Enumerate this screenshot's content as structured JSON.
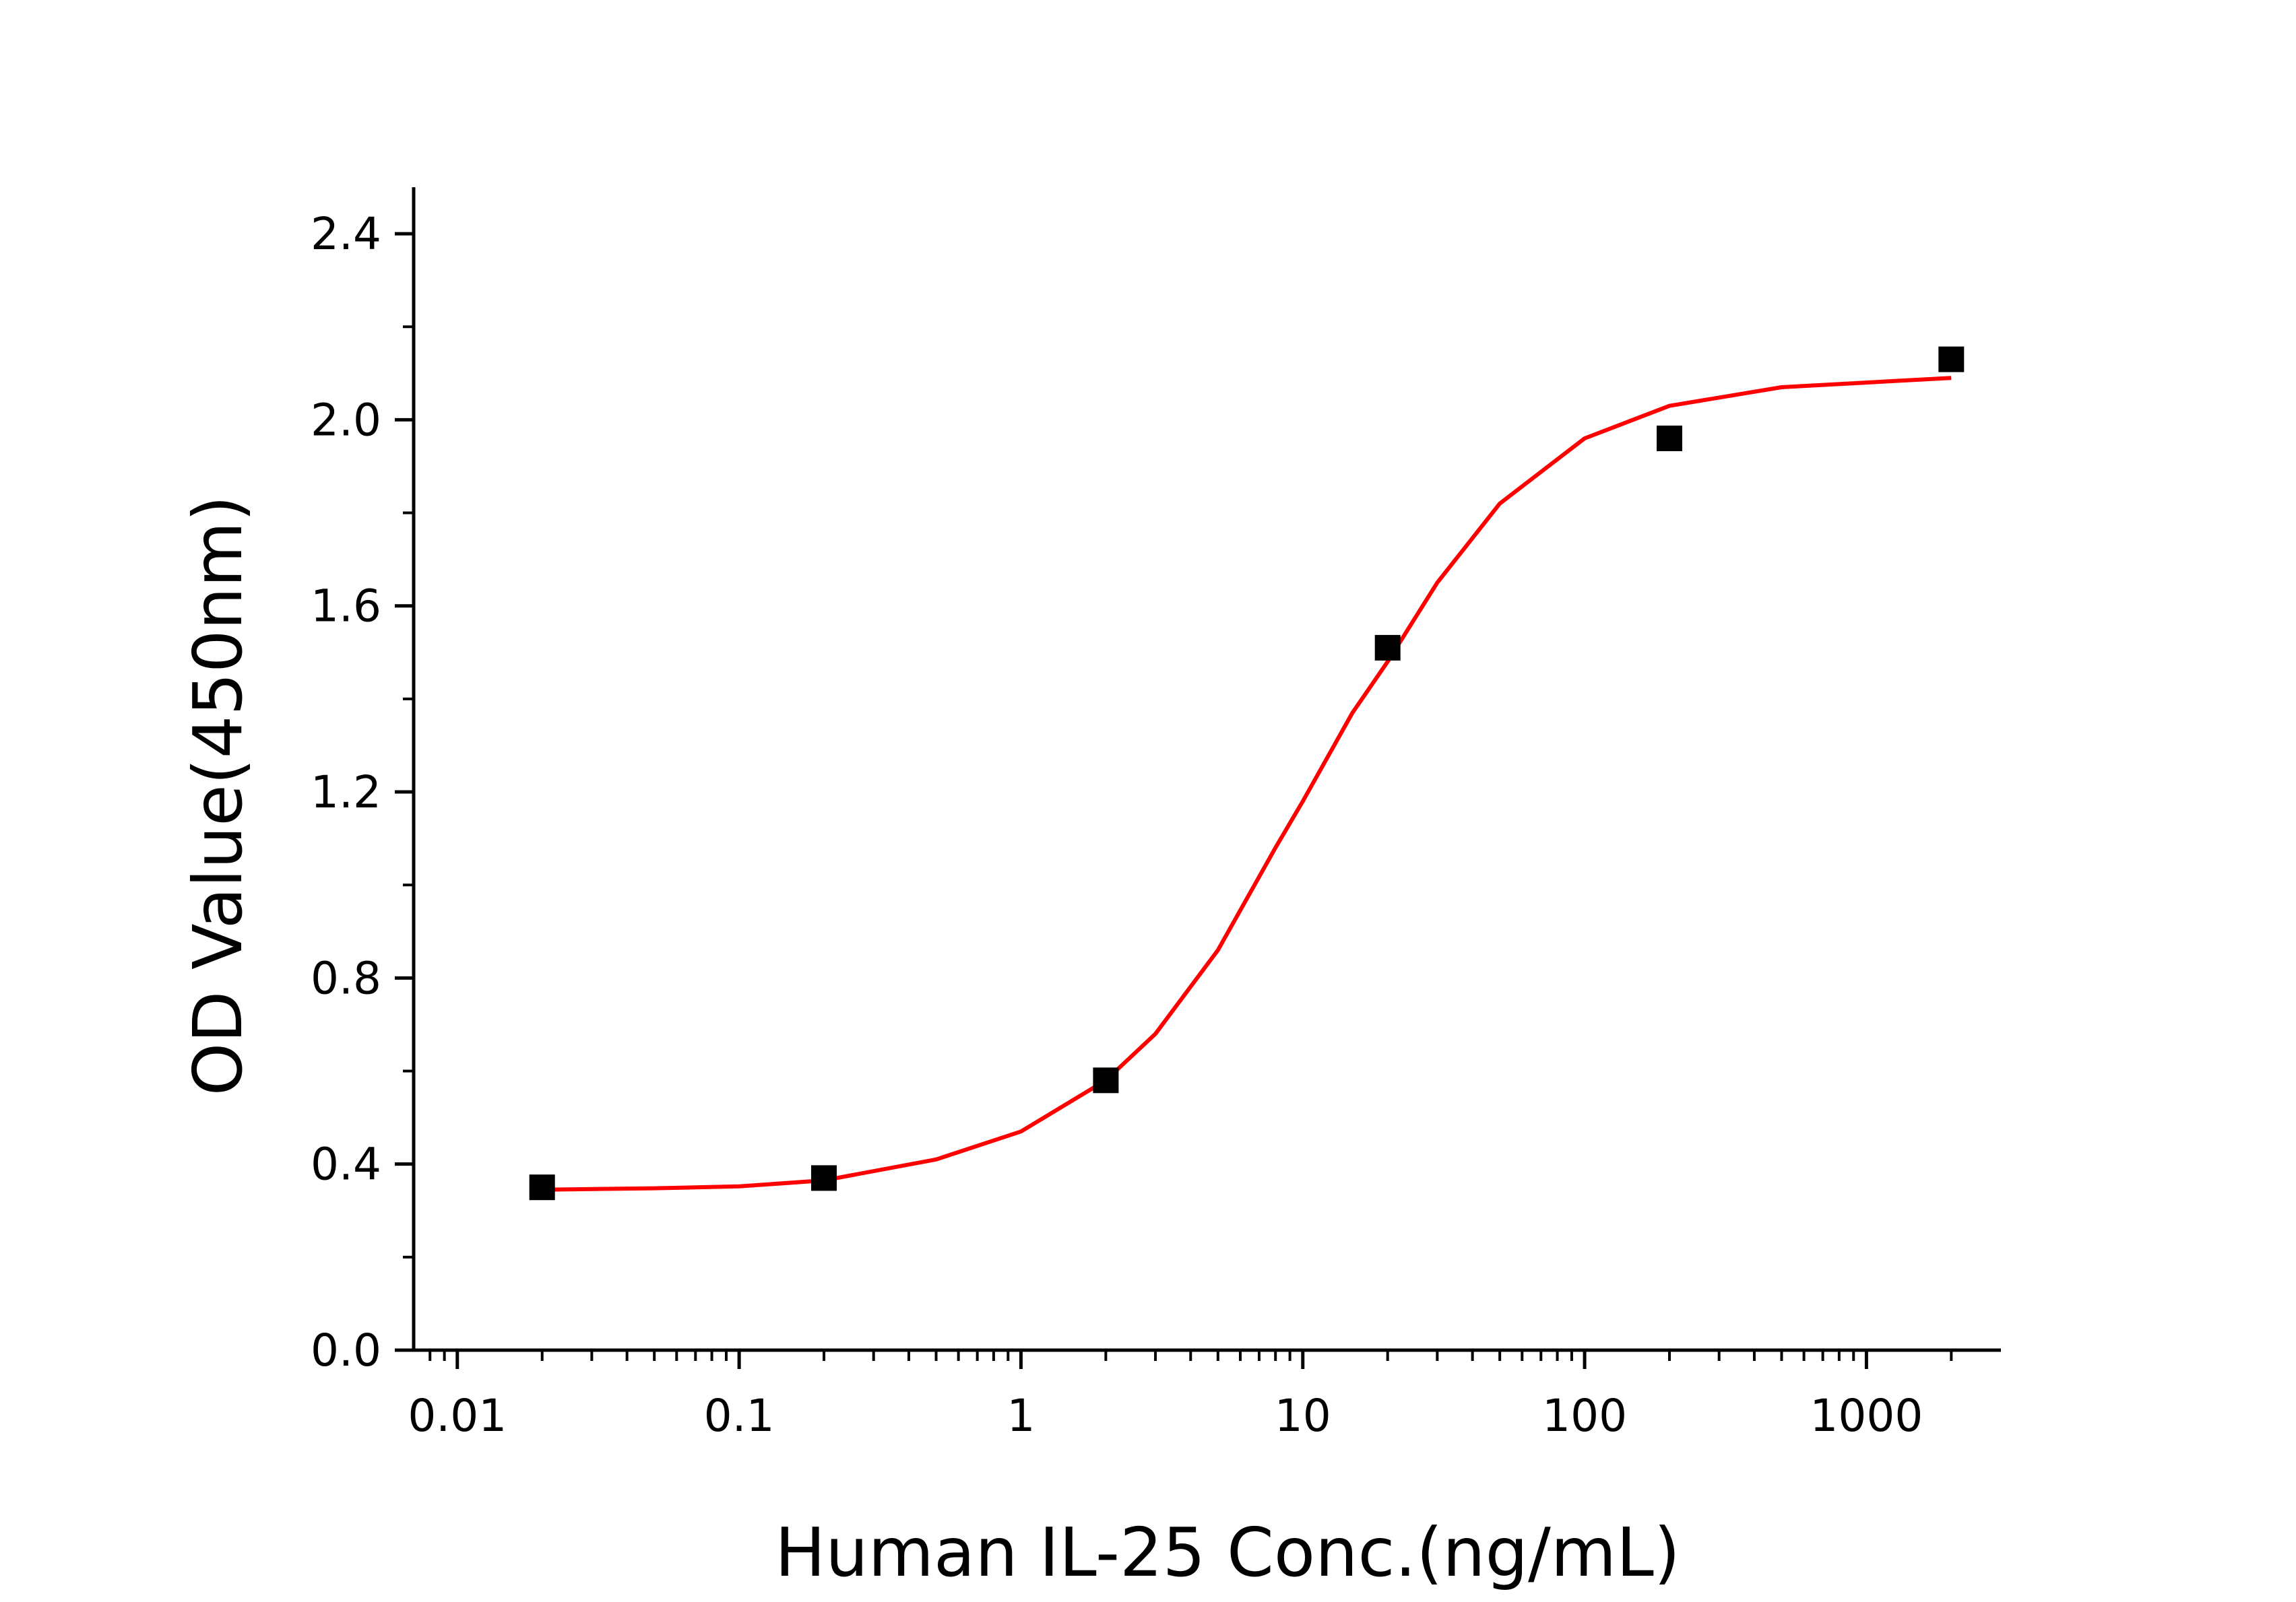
{
  "chart_data": {
    "type": "scatter",
    "title": "",
    "xlabel": "Human IL-25 Conc.(ng/mL)",
    "ylabel": "OD Value(450nm)",
    "x_scale": "log",
    "xlim": [
      0.007,
      3000
    ],
    "ylim": [
      0,
      2.5
    ],
    "x_ticks": [
      0.01,
      0.1,
      1,
      10,
      100,
      1000
    ],
    "x_tick_labels": [
      "0.01",
      "0.1",
      "1",
      "10",
      "100",
      "1000"
    ],
    "y_ticks": [
      0,
      0.4,
      0.8,
      1.2,
      1.6,
      2.0,
      2.4
    ],
    "y_tick_labels": [
      "0.0",
      "0.4",
      "0.8",
      "1.2",
      "1.6",
      "2.0",
      "2.4"
    ],
    "grid": false,
    "legend": "none",
    "series": [
      {
        "kind": "points",
        "marker": "square",
        "color": "#000000",
        "x": [
          0.02,
          0.2,
          2,
          20,
          200,
          2000
        ],
        "y": [
          0.35,
          0.37,
          0.58,
          1.51,
          1.96,
          2.13
        ]
      },
      {
        "kind": "fit-line",
        "color": "#ff0000",
        "x": [
          0.02,
          0.05,
          0.1,
          0.2,
          0.5,
          1,
          2,
          3,
          5,
          8,
          10,
          15,
          20,
          30,
          50,
          100,
          200,
          500,
          1000,
          2000
        ],
        "y": [
          0.345,
          0.348,
          0.352,
          0.365,
          0.41,
          0.47,
          0.58,
          0.68,
          0.86,
          1.08,
          1.18,
          1.37,
          1.48,
          1.65,
          1.82,
          1.96,
          2.03,
          2.07,
          2.08,
          2.09
        ]
      }
    ]
  }
}
